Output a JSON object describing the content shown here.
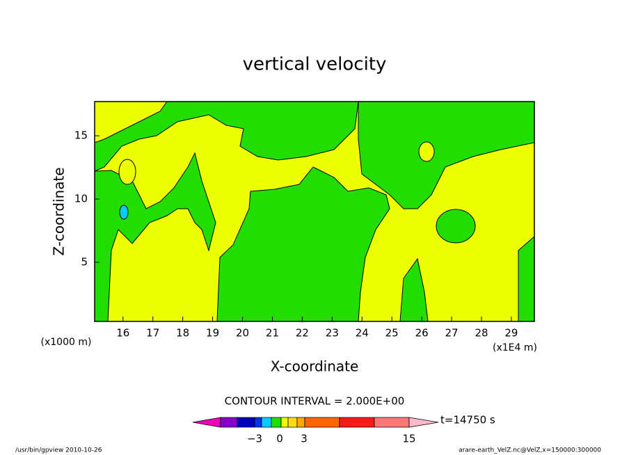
{
  "chart_data": {
    "type": "contour",
    "title": "vertical velocity",
    "x_label": "X-coordinate",
    "y_label": "Z-coordinate",
    "x_unit_left": "(x1000 m)",
    "x_unit_right": "(x1E4 m)",
    "xlim": [
      15.05,
      29.77
    ],
    "xticks": [
      16,
      17,
      18,
      19,
      20,
      21,
      22,
      23,
      24,
      25,
      26,
      27,
      28,
      29
    ],
    "ylim": [
      0.33,
      17.7
    ],
    "yticks": [
      5,
      10,
      15
    ],
    "contour_interval": "CONTOUR INTERVAL = 2.000E+00",
    "time_label": "t=14750 s",
    "colorbar": {
      "colors": [
        "#ee00bb",
        "#8800cc",
        "#0000bb",
        "#0033ee",
        "#00ccff",
        "#22dd00",
        "#eeff00",
        "#ffdd00",
        "#ffaa00",
        "#ff6600",
        "#ff1a1a",
        "#ff7777",
        "#ffbbcc"
      ],
      "ticks": [
        {
          "value": -3,
          "label": "−3"
        },
        0,
        3,
        15
      ]
    },
    "footer_left": "/usr/bin/gpview  2010-10-26",
    "footer_right": "arare-earth_VelZ.nc@VelZ,x=150000:300000"
  }
}
